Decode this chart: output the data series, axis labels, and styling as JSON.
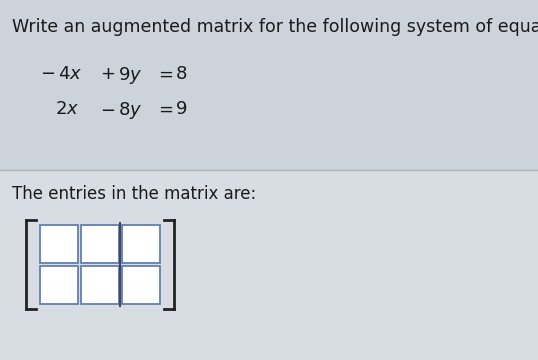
{
  "title": "Write an augmented matrix for the following system of equations.",
  "answer_label": "The entries in the matrix are:",
  "bg_color_top": "#cdd3da",
  "bg_color_bottom": "#d8dde3",
  "divider_color": "#b0b5bb",
  "text_color": "#1a1a1a",
  "title_fontsize": 12.5,
  "eq_fontsize": 13,
  "answer_fontsize": 12,
  "matrix_rows": 2,
  "matrix_cols": 3,
  "augmented_col": 2,
  "box_color": "#ffffff",
  "box_edge_color": "#6080b0",
  "bracket_color": "#222222"
}
